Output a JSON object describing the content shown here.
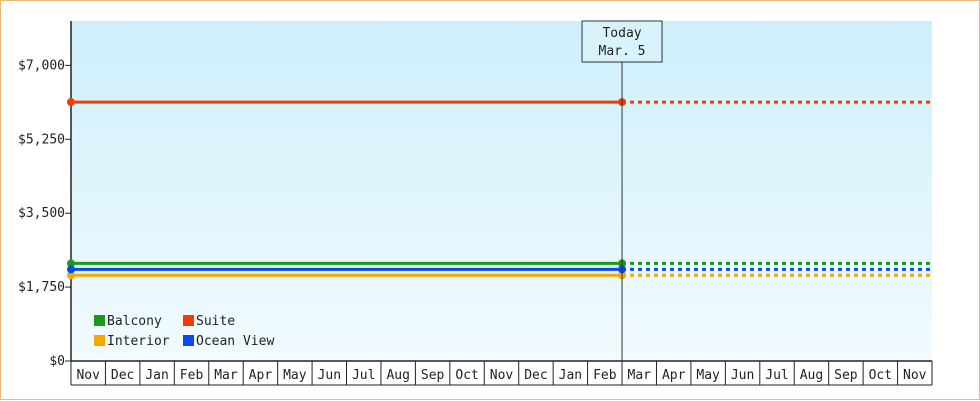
{
  "chart_data": {
    "type": "line",
    "title": "",
    "xlabel": "",
    "ylabel": "",
    "ylim": [
      0,
      8050
    ],
    "yticks": [
      0,
      1750,
      3500,
      5250,
      7000
    ],
    "ytick_labels": [
      "$0",
      "$1,750",
      "$3,500",
      "$5,250",
      "$7,000"
    ],
    "months": [
      "Nov",
      "Dec",
      "Jan",
      "Feb",
      "Mar",
      "Apr",
      "May",
      "Jun",
      "Jul",
      "Aug",
      "Sep",
      "Oct",
      "Nov",
      "Dec",
      "Jan",
      "Feb",
      "Mar",
      "Apr",
      "May",
      "Jun",
      "Jul",
      "Aug",
      "Sep",
      "Oct",
      "Nov"
    ],
    "today_index": 16,
    "today_label_line1": "Today",
    "today_label_line2": "Mar. 5",
    "grid": false,
    "legend_placement": "bottom-left",
    "series": [
      {
        "name": "Balcony",
        "color": "#1a9a1a",
        "value": 2310
      },
      {
        "name": "Suite",
        "color": "#f23c00",
        "value": 6130
      },
      {
        "name": "Interior",
        "color": "#f5a800",
        "value": 2030
      },
      {
        "name": "Ocean View",
        "color": "#0b49f0",
        "value": 2170
      }
    ]
  }
}
